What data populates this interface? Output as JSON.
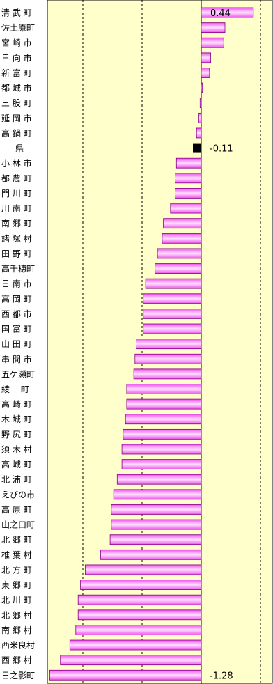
{
  "chart_data": {
    "type": "bar",
    "orientation": "horizontal",
    "categories": [
      "清 武 町",
      "佐土原町",
      "宮 崎 市",
      "日 向 市",
      "新 富 町",
      "都 城 市",
      "三 股 町",
      "延 岡 市",
      "高 鍋 町",
      "県",
      "小 林 市",
      "都 農 町",
      "門 川 町",
      "川 南 町",
      "南 郷 町",
      "諸 塚 村",
      "田 野 町",
      "高千穂町",
      "日 南 市",
      "高 岡 町",
      "西 都 市",
      "国 富 町",
      "山 田 町",
      "串 間 市",
      "五ケ瀬町",
      "綾　 町",
      "高 崎 町",
      "木 城 町",
      "野 尻 町",
      "須 木 村",
      "高 城 町",
      "北 浦 町",
      "えびの市",
      "高 原 町",
      "山之口町",
      "北 郷 町",
      "椎 葉 村",
      "北 方 町",
      "東 郷 町",
      "北 川 町",
      "北 郷 村",
      "南 郷 村",
      "西米良村",
      "西 郷 村",
      "日之影町"
    ],
    "values": [
      0.44,
      0.2,
      0.19,
      0.08,
      0.07,
      0.01,
      -0.01,
      -0.02,
      -0.04,
      -0.11,
      -0.21,
      -0.22,
      -0.22,
      -0.26,
      -0.32,
      -0.33,
      -0.37,
      -0.39,
      -0.47,
      -0.49,
      -0.49,
      -0.49,
      -0.55,
      -0.56,
      -0.57,
      -0.63,
      -0.63,
      -0.64,
      -0.66,
      -0.67,
      -0.67,
      -0.71,
      -0.74,
      -0.76,
      -0.76,
      -0.77,
      -0.85,
      -0.98,
      -1.02,
      -1.04,
      -1.04,
      -1.06,
      -1.11,
      -1.19,
      -1.28
    ],
    "highlight_category": "県",
    "data_labels": [
      {
        "index": 0,
        "text": "0.44"
      },
      {
        "index": 9,
        "text": "-0.11"
      },
      {
        "index": 44,
        "text": "-1.28"
      }
    ],
    "xlim": [
      -1.3,
      0.6
    ],
    "gridlines_x": [
      -1.0,
      -0.5,
      0.5
    ],
    "bar_color": "#ee55ee",
    "bar_highlight_color": "#ffe0ff",
    "bar_border_color": "#880088",
    "highlight_bar_color": "#000000",
    "plot_background": "#ffffcc",
    "title": "",
    "xlabel": "",
    "ylabel": "",
    "legend": "none"
  }
}
